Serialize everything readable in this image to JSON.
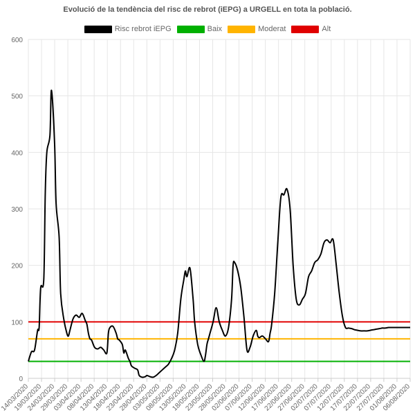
{
  "chart_data": {
    "type": "line",
    "title": "Evolució de la tendència del risc de rebrot (iEPG) a URGELL en tota la població.",
    "legend": [
      {
        "name": "Risc rebrot iEPG",
        "color": "#000000"
      },
      {
        "name": "Baix",
        "color": "#00b000"
      },
      {
        "name": "Moderat",
        "color": "#ffb400"
      },
      {
        "name": "Alt",
        "color": "#e00000"
      }
    ],
    "ylim": [
      0,
      600
    ],
    "y_ticks": [
      0,
      100,
      200,
      300,
      400,
      500,
      600
    ],
    "x_tick_labels": [
      "14/03/2020",
      "19/03/2020",
      "24/03/2020",
      "29/03/2020",
      "03/04/2020",
      "08/04/2020",
      "13/04/2020",
      "18/04/2020",
      "23/04/2020",
      "28/04/2020",
      "03/05/2020",
      "08/05/2020",
      "13/05/2020",
      "18/05/2020",
      "23/05/2020",
      "28/05/2020",
      "02/06/2020",
      "07/06/2020",
      "12/06/2020",
      "17/06/2020",
      "22/06/2020",
      "27/06/2020",
      "02/07/2020",
      "07/07/2020",
      "12/07/2020",
      "17/07/2020",
      "22/07/2020",
      "27/07/2020",
      "01/08/2020",
      "06/08/2020"
    ],
    "thresholds": [
      {
        "name": "Baix",
        "value": 30,
        "color": "#00b000"
      },
      {
        "name": "Moderat",
        "value": 70,
        "color": "#ffb400"
      },
      {
        "name": "Alt",
        "value": 100,
        "color": "#e00000"
      }
    ],
    "series": [
      {
        "name": "Risc rebrot iEPG",
        "color": "#000000",
        "x": [
          0,
          2,
          4,
          6,
          7,
          8,
          10,
          11,
          12,
          14,
          15,
          17,
          18,
          20,
          21,
          23,
          25,
          26,
          27,
          29,
          31,
          33,
          35,
          37,
          38,
          39,
          40,
          41,
          43,
          45,
          47,
          49,
          51,
          52,
          53,
          55,
          57,
          58,
          59,
          61,
          62,
          63,
          65,
          66,
          67,
          69,
          71,
          72,
          74,
          76,
          77,
          79,
          81,
          83,
          85,
          87,
          89,
          91,
          93,
          95,
          97,
          99,
          101,
          102,
          103,
          105,
          107,
          108,
          110,
          112,
          114,
          115,
          116,
          117,
          118,
          120,
          122,
          124,
          126,
          128,
          130,
          132,
          133,
          134,
          136,
          138,
          140,
          142,
          144,
          146,
          148,
          149,
          150,
          152,
          154,
          156,
          157,
          158,
          160,
          162,
          164,
          166,
          168,
          170,
          172,
          174,
          176,
          178,
          180,
          182,
          184,
          186,
          188,
          190,
          192,
          194,
          196,
          198,
          200,
          202,
          204,
          206,
          208,
          210,
          211,
          212,
          214,
          216,
          218,
          220,
          222,
          224,
          226,
          228,
          230,
          232,
          234,
          236,
          238,
          240,
          242,
          243,
          244,
          246,
          248
        ],
        "values": [
          30,
          47,
          50,
          85,
          90,
          160,
          175,
          330,
          400,
          430,
          510,
          420,
          310,
          250,
          150,
          105,
          80,
          75,
          85,
          105,
          112,
          108,
          115,
          102,
          96,
          80,
          70,
          68,
          55,
          52,
          55,
          50,
          45,
          80,
          90,
          92,
          80,
          70,
          68,
          60,
          45,
          50,
          35,
          30,
          22,
          18,
          15,
          5,
          2,
          3,
          5,
          3,
          2,
          5,
          10,
          15,
          20,
          25,
          35,
          50,
          80,
          140,
          175,
          190,
          180,
          195,
          140,
          100,
          60,
          42,
          30,
          40,
          60,
          70,
          80,
          100,
          125,
          100,
          85,
          75,
          90,
          140,
          200,
          205,
          190,
          160,
          110,
          50,
          55,
          75,
          85,
          75,
          72,
          75,
          70,
          65,
          80,
          95,
          150,
          240,
          320,
          325,
          335,
          300,
          200,
          140,
          130,
          140,
          150,
          180,
          190,
          205,
          210,
          220,
          240,
          245,
          240,
          245,
          200,
          150,
          110,
          90,
          89,
          88,
          87,
          86,
          85,
          84,
          84,
          84,
          85,
          86,
          87,
          88,
          89,
          89,
          90,
          90,
          90,
          90,
          90,
          90,
          90,
          90,
          90
        ]
      }
    ]
  }
}
